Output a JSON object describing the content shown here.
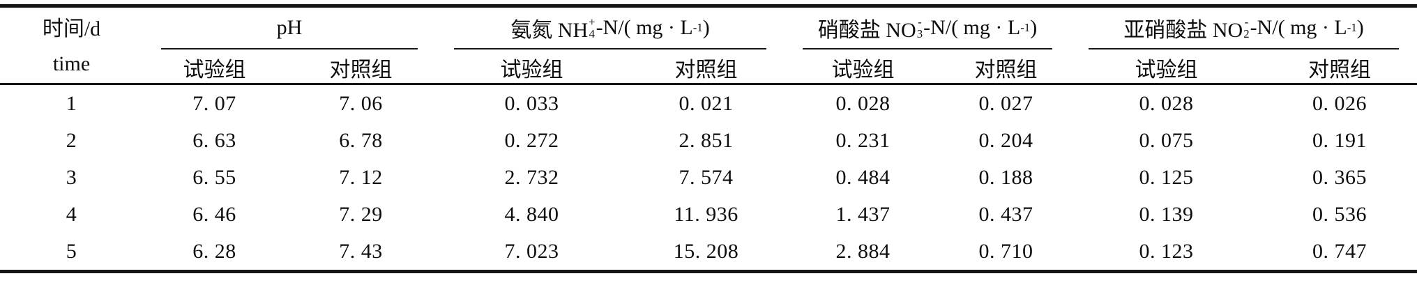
{
  "table": {
    "row_header": {
      "line1": "时间/d",
      "line2": "time"
    },
    "groups": [
      {
        "label_segments": [
          {
            "t": "pH"
          }
        ],
        "sub_test": "试验组",
        "sub_control": "对照组"
      },
      {
        "label_segments": [
          {
            "t": "氨氮 NH"
          },
          {
            "m": "stack",
            "sup": "+",
            "sub": "4"
          },
          {
            "t": "-N/( mg · L"
          },
          {
            "m": "sup",
            "t": "-1"
          },
          {
            "t": " )"
          }
        ],
        "sub_test": "试验组",
        "sub_control": "对照组"
      },
      {
        "label_segments": [
          {
            "t": "硝酸盐 NO"
          },
          {
            "m": "stack",
            "sup": "-",
            "sub": "3"
          },
          {
            "t": "-N/( mg · L"
          },
          {
            "m": "sup",
            "t": "-1"
          },
          {
            "t": " )"
          }
        ],
        "sub_test": "试验组",
        "sub_control": "对照组"
      },
      {
        "label_segments": [
          {
            "t": "亚硝酸盐 NO"
          },
          {
            "m": "stack",
            "sup": "-",
            "sub": "2"
          },
          {
            "t": "-N/( mg · L"
          },
          {
            "m": "sup",
            "t": "-1"
          },
          {
            "t": " )"
          }
        ],
        "sub_test": "试验组",
        "sub_control": "对照组"
      }
    ],
    "rows": [
      {
        "time": "1",
        "ph_test": "7. 07",
        "ph_control": "7. 06",
        "nh4_test": "0. 033",
        "nh4_control": "0. 021",
        "no3_test": "0. 028",
        "no3_control": "0. 027",
        "no2_test": "0. 028",
        "no2_control": "0. 026"
      },
      {
        "time": "2",
        "ph_test": "6. 63",
        "ph_control": "6. 78",
        "nh4_test": "0. 272",
        "nh4_control": "2. 851",
        "no3_test": "0. 231",
        "no3_control": "0. 204",
        "no2_test": "0. 075",
        "no2_control": "0. 191"
      },
      {
        "time": "3",
        "ph_test": "6. 55",
        "ph_control": "7. 12",
        "nh4_test": "2. 732",
        "nh4_control": "7. 574",
        "no3_test": "0. 484",
        "no3_control": "0. 188",
        "no2_test": "0. 125",
        "no2_control": "0. 365"
      },
      {
        "time": "4",
        "ph_test": "6. 46",
        "ph_control": "7. 29",
        "nh4_test": "4. 840",
        "nh4_control": "11. 936",
        "no3_test": "1. 437",
        "no3_control": "0. 437",
        "no2_test": "0. 139",
        "no2_control": "0. 536"
      },
      {
        "time": "5",
        "ph_test": "6. 28",
        "ph_control": "7. 43",
        "nh4_test": "7. 023",
        "nh4_control": "15. 208",
        "no3_test": "2. 884",
        "no3_control": "0. 710",
        "no2_test": "0. 123",
        "no2_control": "0. 747"
      }
    ]
  }
}
